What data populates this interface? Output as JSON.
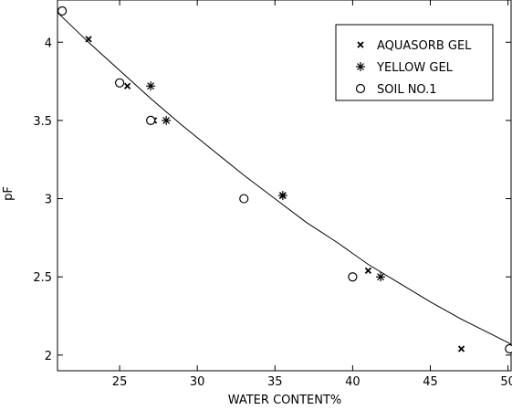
{
  "chart_data": {
    "type": "scatter",
    "title": "",
    "xlabel": "WATER CONTENT%",
    "ylabel": "pF",
    "xlim": [
      21,
      50.2
    ],
    "ylim": [
      1.9,
      4.27
    ],
    "x_ticks": [
      25,
      30,
      35,
      40,
      45,
      50
    ],
    "x_tick_labels": [
      "25",
      "30",
      "35",
      "40",
      "45",
      "50"
    ],
    "y_ticks": [
      2,
      2.5,
      3,
      3.5,
      4
    ],
    "y_tick_labels": [
      "2",
      "2.5",
      "3",
      "3.5",
      "4"
    ],
    "grid": false,
    "legend_position": "top-right",
    "series": [
      {
        "name": "AQUASORB GEL",
        "marker": "x",
        "x": [
          23.0,
          25.5,
          27.2,
          35.5,
          41.0,
          47.0
        ],
        "y": [
          4.02,
          3.72,
          3.5,
          3.02,
          2.54,
          2.04
        ]
      },
      {
        "name": "YELLOW GEL",
        "marker": "star",
        "x": [
          27.0,
          28.0,
          35.5,
          41.8
        ],
        "y": [
          3.72,
          3.5,
          3.02,
          2.5
        ]
      },
      {
        "name": "SOIL NO.1",
        "marker": "circle",
        "x": [
          21.3,
          25.0,
          27.0,
          33.0,
          40.0,
          50.1
        ],
        "y": [
          4.2,
          3.74,
          3.5,
          3.0,
          2.5,
          2.04
        ]
      }
    ],
    "fit_curve": {
      "x": [
        21,
        23,
        25,
        27,
        29,
        31,
        33,
        35,
        37,
        39,
        41,
        43,
        45,
        47,
        49,
        50.2
      ],
      "y": [
        4.19,
        4.0,
        3.82,
        3.64,
        3.47,
        3.31,
        3.15,
        3.0,
        2.85,
        2.72,
        2.58,
        2.46,
        2.34,
        2.23,
        2.13,
        2.07
      ]
    }
  }
}
